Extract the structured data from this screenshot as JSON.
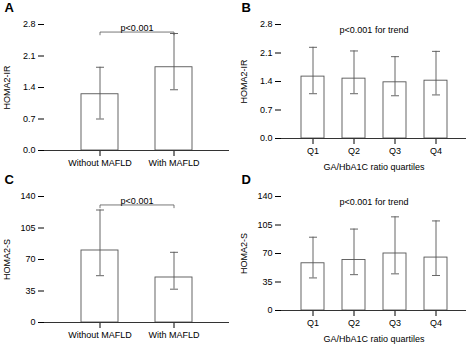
{
  "chart_data": [
    {
      "type": "bar",
      "title": "A",
      "categories": [
        "Without MAFLD",
        "With MAFLD"
      ],
      "values": [
        1.25,
        1.85
      ],
      "yerr_low": [
        0.55,
        0.5
      ],
      "yerr_high": [
        0.6,
        0.75
      ],
      "ylim": [
        0,
        2.8
      ],
      "yticks": [
        {
          "value": 0,
          "label": "0.0"
        },
        0.7,
        1.4,
        2.1,
        2.8
      ],
      "ylabel": "HOMA2-IR",
      "annotation": {
        "text": "p<0.001",
        "x": [
          "Without MAFLD",
          "With MAFLD"
        ]
      },
      "color": "#ffffff"
    },
    {
      "type": "bar",
      "title": "B",
      "categories": [
        "Q1",
        "Q2",
        "Q3",
        "Q4"
      ],
      "values": [
        1.52,
        1.47,
        1.38,
        1.42
      ],
      "yerr_low": [
        0.42,
        0.37,
        0.33,
        0.35
      ],
      "yerr_high": [
        0.72,
        0.68,
        0.63,
        0.72
      ],
      "ylim": [
        0,
        2.8
      ],
      "yticks": [
        {
          "value": 0,
          "label": "0.0"
        },
        0.7,
        1.4,
        2.1,
        2.8
      ],
      "ylabel": "HOMA2-IR",
      "xlabel": "GA/HbA1C ratio quartiles",
      "annotation": {
        "text": "p<0.001 for trend"
      },
      "color": "#ffffff"
    },
    {
      "type": "bar",
      "title": "C",
      "categories": [
        "Without MAFLD",
        "With MAFLD"
      ],
      "values": [
        80,
        50
      ],
      "yerr_low": [
        28,
        13
      ],
      "yerr_high": [
        45,
        28
      ],
      "ylim": [
        0,
        140
      ],
      "yticks": [
        0,
        35,
        70,
        105,
        140
      ],
      "ylabel": "HOMA2-S",
      "annotation": {
        "text": "p<0.001",
        "x": [
          "Without MAFLD",
          "With MAFLD"
        ]
      },
      "color": "#ffffff"
    },
    {
      "type": "bar",
      "title": "D",
      "categories": [
        "Q1",
        "Q2",
        "Q3",
        "Q4"
      ],
      "values": [
        58,
        62,
        70,
        65
      ],
      "yerr_low": [
        18,
        18,
        25,
        22
      ],
      "yerr_high": [
        32,
        38,
        45,
        45
      ],
      "ylim": [
        0,
        140
      ],
      "yticks": [
        0,
        35,
        70,
        105,
        140
      ],
      "ylabel": "HOMA2-S",
      "xlabel": "GA/HbA1C ratio quartiles",
      "annotation": {
        "text": "p<0.001 for trend"
      },
      "color": "#ffffff"
    }
  ]
}
